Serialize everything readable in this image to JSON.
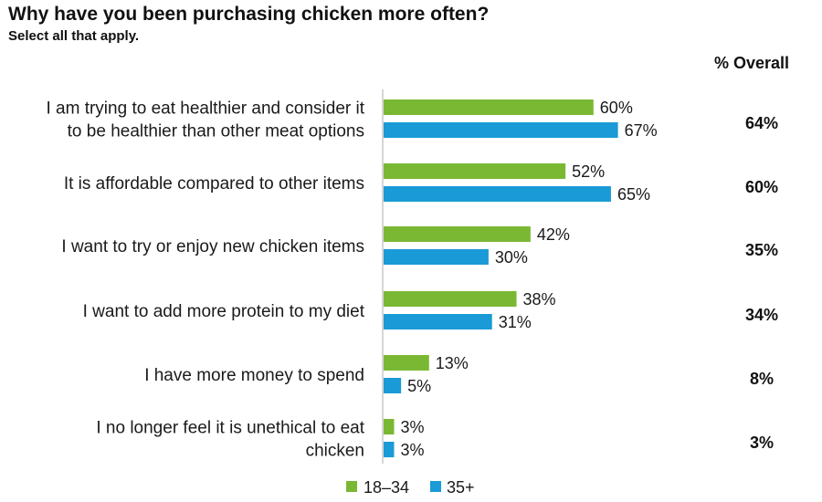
{
  "chart_data": {
    "type": "bar",
    "orientation": "horizontal",
    "title": "Why have you been purchasing chicken more often?",
    "subtitle": "Select all that apply.",
    "categories": [
      [
        "I am trying to eat healthier and consider it",
        "to be healthier than other meat options"
      ],
      [
        "It is affordable compared to other items"
      ],
      [
        "I want to try or enjoy new chicken items"
      ],
      [
        "I want to add more protein to my diet"
      ],
      [
        "I have more money to spend"
      ],
      [
        "I no longer feel it is unethical to eat",
        "chicken"
      ]
    ],
    "series": [
      {
        "name": "18–34",
        "color": "#7ab833",
        "values": [
          60,
          52,
          42,
          38,
          13,
          3
        ]
      },
      {
        "name": "35+",
        "color": "#1a9ad6",
        "values": [
          67,
          65,
          30,
          31,
          5,
          3
        ]
      }
    ],
    "value_suffix": "%",
    "overall": {
      "header": "% Overall",
      "values": [
        "64%",
        "60%",
        "35%",
        "34%",
        "8%",
        "3%"
      ]
    },
    "xlim": [
      0,
      100
    ],
    "grid": false,
    "legend": "bottom"
  }
}
